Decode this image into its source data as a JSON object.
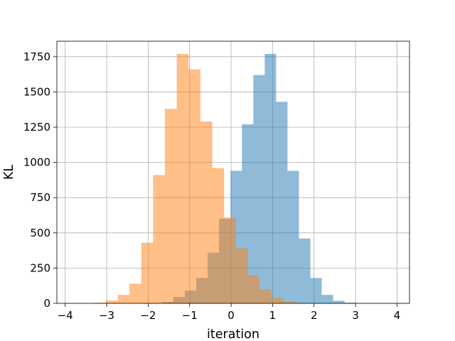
{
  "chart_data": {
    "type": "bar",
    "subtype": "overlaid-histogram",
    "title": "",
    "xlabel": "iteration",
    "ylabel": "KL",
    "xlim": [
      -4.2,
      4.3
    ],
    "ylim": [
      0,
      1860
    ],
    "grid": true,
    "legend": "none",
    "x_ticks": [
      -4,
      -3,
      -2,
      -1,
      0,
      1,
      2,
      3,
      4
    ],
    "y_ticks": [
      0,
      250,
      500,
      750,
      1000,
      1250,
      1500,
      1750
    ],
    "series": [
      {
        "color": "#1f77b4",
        "alpha": 0.5,
        "bin_edges": [
          -1.94,
          -1.665,
          -1.39,
          -1.115,
          -0.84,
          -0.565,
          -0.29,
          -0.015,
          0.26,
          0.535,
          0.81,
          1.085,
          1.36,
          1.635,
          1.91,
          2.185,
          2.46,
          2.735,
          3.01,
          3.285
        ],
        "counts": [
          3,
          10,
          45,
          90,
          180,
          360,
          600,
          940,
          1270,
          1620,
          1770,
          1430,
          940,
          460,
          180,
          60,
          18,
          5,
          1
        ]
      },
      {
        "color": "#ff7f0e",
        "alpha": 0.5,
        "bin_edges": [
          -3.59,
          -3.305,
          -3.02,
          -2.735,
          -2.45,
          -2.165,
          -1.88,
          -1.595,
          -1.31,
          -1.025,
          -0.74,
          -0.455,
          -0.17,
          0.115,
          0.4,
          0.685,
          0.97,
          1.255,
          1.54,
          1.825,
          2.11
        ],
        "counts": [
          1,
          5,
          20,
          60,
          140,
          430,
          910,
          1380,
          1770,
          1660,
          1290,
          960,
          610,
          390,
          200,
          100,
          40,
          15,
          5,
          2
        ]
      }
    ]
  }
}
